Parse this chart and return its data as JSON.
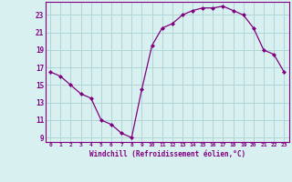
{
  "x": [
    0,
    1,
    2,
    3,
    4,
    5,
    6,
    7,
    8,
    9,
    10,
    11,
    12,
    13,
    14,
    15,
    16,
    17,
    18,
    19,
    20,
    21,
    22,
    23
  ],
  "y": [
    16.5,
    16.0,
    15.0,
    14.0,
    13.5,
    11.0,
    10.5,
    9.5,
    9.0,
    14.5,
    19.5,
    21.5,
    22.0,
    23.0,
    23.5,
    23.8,
    23.8,
    24.0,
    23.5,
    23.0,
    21.5,
    19.0,
    18.5,
    16.5
  ],
  "xlim": [
    -0.5,
    23.5
  ],
  "ylim": [
    8.5,
    24.5
  ],
  "yticks": [
    9,
    11,
    13,
    15,
    17,
    19,
    21,
    23
  ],
  "xticks": [
    0,
    1,
    2,
    3,
    4,
    5,
    6,
    7,
    8,
    9,
    10,
    11,
    12,
    13,
    14,
    15,
    16,
    17,
    18,
    19,
    20,
    21,
    22,
    23
  ],
  "xlabel": "Windchill (Refroidissement éolien,°C)",
  "line_color": "#800080",
  "marker": "D",
  "marker_size": 2.0,
  "bg_color": "#d8f0f0",
  "grid_color": "#b0d4d4",
  "axes_color": "#800080"
}
